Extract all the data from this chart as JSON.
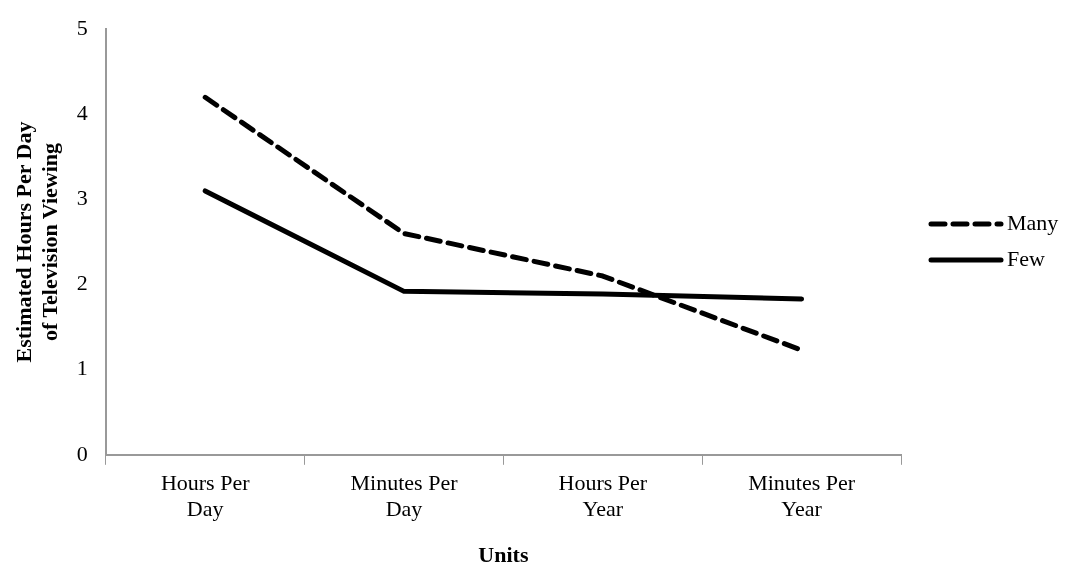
{
  "chart_data": {
    "type": "line",
    "xlabel": "Units",
    "ylabel": "Estimated Hours Per Day of Television Viewing",
    "categories": [
      "Hours Per Day",
      "Minutes Per Day",
      "Hours Per Year",
      "Minutes Per Year"
    ],
    "series": [
      {
        "name": "Many",
        "color": "#000000",
        "line_style": "dashed",
        "values": [
          4.2,
          2.6,
          2.1,
          1.23
        ]
      },
      {
        "name": "Few",
        "color": "#000000",
        "line_style": "solid",
        "values": [
          3.1,
          1.92,
          1.89,
          1.83
        ]
      }
    ],
    "ylim": [
      0,
      5
    ],
    "yticks": [
      0,
      1,
      2,
      3,
      4,
      5
    ],
    "grid": false,
    "legend": "right",
    "marker": "none"
  }
}
